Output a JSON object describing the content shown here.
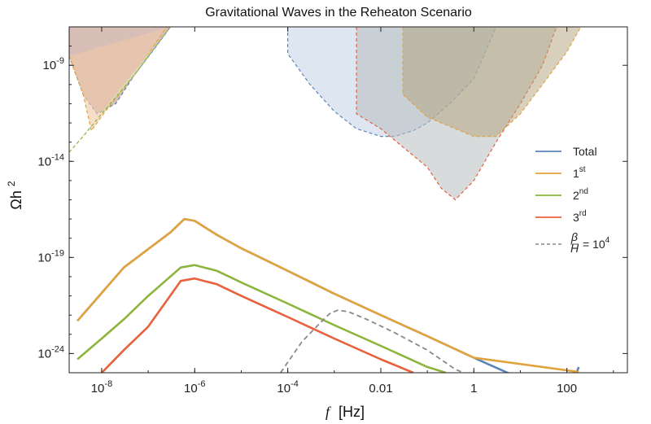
{
  "chart_data": {
    "type": "line",
    "title": "Gravitational Waves in the Reheaton Scenario",
    "xlabel_var": "f",
    "xlabel_unit": "[Hz]",
    "ylabel_main": "Ωh",
    "ylabel_sup": "2",
    "x_scale": "log",
    "y_scale": "log",
    "xlim": [
      2e-09,
      2000
    ],
    "ylim": [
      1e-25,
      1e-07
    ],
    "x_ticks": [
      {
        "value": 1e-08,
        "label": "10",
        "exp": "-8"
      },
      {
        "value": 1e-06,
        "label": "10",
        "exp": "-6"
      },
      {
        "value": 0.0001,
        "label": "10",
        "exp": "-4"
      },
      {
        "value": 0.01,
        "label": "0.01",
        "exp": ""
      },
      {
        "value": 1,
        "label": "1",
        "exp": ""
      },
      {
        "value": 100,
        "label": "100",
        "exp": ""
      }
    ],
    "y_ticks": [
      {
        "value": 1e-09,
        "label": "10",
        "exp": "-9"
      },
      {
        "value": 1e-14,
        "label": "10",
        "exp": "-14"
      },
      {
        "value": 1e-19,
        "label": "10",
        "exp": "-19"
      },
      {
        "value": 1e-24,
        "label": "10",
        "exp": "-24"
      }
    ],
    "grid": false,
    "legend_position": "right",
    "legend": [
      {
        "label": "Total",
        "sup": "",
        "color": "#5b84b8",
        "style": "solid"
      },
      {
        "label": "1",
        "sup": "st",
        "color": "#e2a33c",
        "style": "solid"
      },
      {
        "label": "2",
        "sup": "nd",
        "color": "#8db43d",
        "style": "solid"
      },
      {
        "label": "3",
        "sup": "rd",
        "color": "#e8603c",
        "style": "solid"
      },
      {
        "label": "β/H = 10",
        "frac_num": "β",
        "frac_den": "H",
        "eq": "= 10",
        "sup": "4",
        "color": "#888888",
        "style": "dashed"
      }
    ],
    "series": [
      {
        "name": "Total",
        "color": "#5b84b8",
        "style": "solid",
        "points": [
          [
            3e-09,
            5e-23
          ],
          [
            3e-08,
            3e-20
          ],
          [
            3e-07,
            2e-18
          ],
          [
            6e-07,
            1e-17
          ],
          [
            1e-06,
            8e-18
          ],
          [
            3e-06,
            1.5e-18
          ],
          [
            1e-05,
            3e-19
          ],
          [
            0.0001,
            2e-20
          ],
          [
            0.001,
            1.3e-21
          ],
          [
            0.01,
            1e-22
          ],
          [
            0.1,
            8e-24
          ],
          [
            1,
            6e-25
          ],
          [
            10,
            5e-26
          ],
          [
            100,
            4e-27
          ],
          [
            180,
            2e-25
          ]
        ]
      },
      {
        "name": "1st",
        "color": "#e2a33c",
        "style": "solid",
        "points": [
          [
            3e-09,
            5e-23
          ],
          [
            3e-08,
            3e-20
          ],
          [
            3e-07,
            2e-18
          ],
          [
            6e-07,
            1e-17
          ],
          [
            1e-06,
            8e-18
          ],
          [
            3e-06,
            1.5e-18
          ],
          [
            1e-05,
            3e-19
          ],
          [
            0.0001,
            2e-20
          ],
          [
            0.001,
            1.3e-21
          ],
          [
            0.01,
            1e-22
          ],
          [
            0.1,
            8e-24
          ],
          [
            1,
            6e-25
          ],
          [
            180,
            1.1e-25
          ]
        ]
      },
      {
        "name": "2nd",
        "color": "#8db43d",
        "style": "solid",
        "points": [
          [
            3e-09,
            5e-25
          ],
          [
            1e-08,
            6e-24
          ],
          [
            3e-08,
            6e-23
          ],
          [
            1e-07,
            1e-21
          ],
          [
            5e-07,
            3e-20
          ],
          [
            1e-06,
            4e-20
          ],
          [
            3e-06,
            2e-20
          ],
          [
            1e-05,
            5e-21
          ],
          [
            0.0001,
            4e-22
          ],
          [
            0.001,
            3e-23
          ],
          [
            0.01,
            2.5e-24
          ],
          [
            0.1,
            2e-25
          ],
          [
            0.25,
            1e-25
          ]
        ]
      },
      {
        "name": "3rd",
        "color": "#e8603c",
        "style": "solid",
        "points": [
          [
            1e-08,
            1e-25
          ],
          [
            3e-08,
            1.5e-24
          ],
          [
            1e-07,
            2.5e-23
          ],
          [
            5e-07,
            6e-21
          ],
          [
            1e-06,
            8e-21
          ],
          [
            3e-06,
            4e-21
          ],
          [
            1e-05,
            1e-21
          ],
          [
            0.0001,
            8e-23
          ],
          [
            0.001,
            6e-24
          ],
          [
            0.01,
            5e-25
          ],
          [
            0.05,
            1e-25
          ]
        ]
      },
      {
        "name": "β/H = 10^4",
        "color": "#888888",
        "style": "dashed",
        "points": [
          [
            7e-05,
            1e-25
          ],
          [
            0.0002,
            4e-24
          ],
          [
            0.0005,
            4e-23
          ],
          [
            0.0008,
            1.2e-22
          ],
          [
            0.0012,
            1.8e-22
          ],
          [
            0.002,
            1.5e-22
          ],
          [
            0.005,
            6e-23
          ],
          [
            0.02,
            1.2e-23
          ],
          [
            0.1,
            1.5e-24
          ],
          [
            0.4,
            1.5e-25
          ],
          [
            0.6,
            1e-25
          ]
        ]
      }
    ],
    "sensitivity_regions": [
      {
        "color": "#c9a99f",
        "edge": "#5b84b8",
        "opacity": 0.75,
        "top": 1e-07,
        "points": [
          [
            2e-09,
            1e-07
          ],
          [
            2e-09,
            3e-09
          ],
          [
            4e-09,
            3e-11
          ],
          [
            8e-09,
            3e-12
          ],
          [
            2e-08,
            1e-11
          ],
          [
            5e-08,
            3e-10
          ],
          [
            1.5e-07,
            1e-08
          ],
          [
            3e-07,
            1e-07
          ]
        ]
      },
      {
        "color": "#f0c8a6",
        "edge": "#e2a33c",
        "opacity": 0.6,
        "points": [
          [
            2e-09,
            3e-09
          ],
          [
            4e-09,
            3e-11
          ],
          [
            6e-09,
            4e-13
          ],
          [
            1.2e-08,
            4e-12
          ],
          [
            5e-08,
            3e-10
          ],
          [
            2.5e-07,
            1e-07
          ],
          [
            3e-07,
            1e-07
          ]
        ]
      },
      {
        "color": "#d6e8c2",
        "edge": "#8db43d",
        "opacity": 0.6,
        "points": [
          [
            2e-09,
            3e-14
          ],
          [
            4e-09,
            2e-13
          ],
          [
            1e-08,
            3e-12
          ],
          [
            5e-08,
            3e-10
          ],
          [
            3e-07,
            1e-07
          ]
        ]
      },
      {
        "color": "#c8d6ea",
        "edge": "#5b84b8",
        "opacity": 0.6,
        "points": [
          [
            0.0001,
            1e-07
          ],
          [
            0.0001,
            4e-09
          ],
          [
            0.0003,
            1e-10
          ],
          [
            0.001,
            4e-12
          ],
          [
            0.003,
            5e-13
          ],
          [
            0.01,
            2e-13
          ],
          [
            0.02,
            2e-13
          ],
          [
            0.05,
            4e-13
          ],
          [
            0.1,
            1e-12
          ],
          [
            0.3,
            1e-11
          ],
          [
            1,
            2e-10
          ],
          [
            3,
            1e-07
          ]
        ]
      },
      {
        "color": "#b7bdc0",
        "edge": "#e8603c",
        "opacity": 0.55,
        "points": [
          [
            0.003,
            1e-07
          ],
          [
            0.003,
            3e-12
          ],
          [
            0.01,
            5e-13
          ],
          [
            0.1,
            5e-15
          ],
          [
            0.2,
            4e-16
          ],
          [
            0.4,
            1e-16
          ],
          [
            1,
            1e-15
          ],
          [
            3,
            1e-13
          ],
          [
            10,
            1e-11
          ],
          [
            30,
            1e-09
          ],
          [
            60,
            1e-07
          ]
        ]
      },
      {
        "color": "#b2a17a",
        "edge": "#e2a33c",
        "opacity": 0.5,
        "points": [
          [
            0.03,
            1e-07
          ],
          [
            0.03,
            3e-11
          ],
          [
            0.1,
            2e-12
          ],
          [
            1,
            2e-13
          ],
          [
            3,
            2e-13
          ],
          [
            10,
            3e-12
          ],
          [
            30,
            1e-10
          ],
          [
            100,
            5e-09
          ],
          [
            200,
            1e-07
          ]
        ]
      }
    ]
  }
}
